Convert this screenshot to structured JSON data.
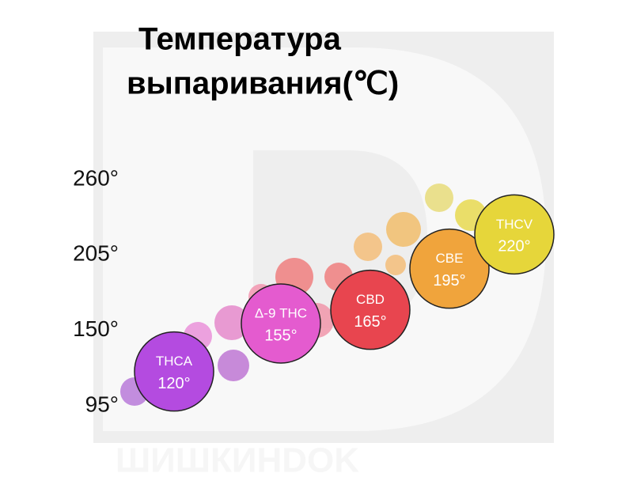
{
  "chart_data": {
    "type": "bubble",
    "title": [
      "Температура",
      "выпаривания(℃)"
    ],
    "categories": [
      "THCA",
      "Δ-9 THC",
      "CBD",
      "CBE",
      "THCV"
    ],
    "values": [
      120,
      155,
      165,
      195,
      220
    ],
    "value_labels": [
      "120°",
      "155°",
      "165°",
      "195°",
      "220°"
    ],
    "colors": [
      "#b44be0",
      "#e45bcf",
      "#e8454f",
      "#f0a43c",
      "#e6d63a"
    ],
    "ylim": [
      95,
      260
    ],
    "yticks": [
      {
        "value": 95,
        "label": "95°"
      },
      {
        "value": 150,
        "label": "150°"
      },
      {
        "value": 205,
        "label": "205°"
      },
      {
        "value": 260,
        "label": "260°"
      }
    ],
    "watermark": "ШИШКИНDOK"
  }
}
